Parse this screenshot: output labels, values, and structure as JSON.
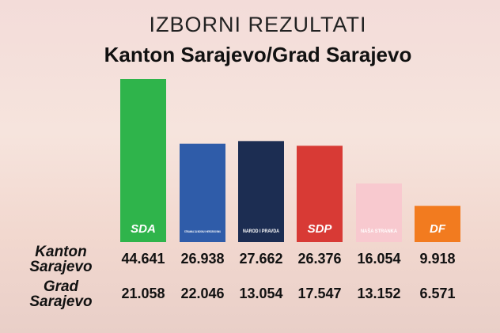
{
  "chart_data": {
    "type": "bar",
    "title": "IZBORNI REZULTATI",
    "subtitle": "Kanton Sarajevo/Grad Sarajevo",
    "categories": [
      "SDA",
      "STRANKA ZA BOSNU I HERCEGOVINU",
      "NAROD I PRAVDA",
      "SDP",
      "NAŠA STRANKA",
      "DF"
    ],
    "colors": [
      "#2fb44b",
      "#2f5ca9",
      "#1c2d52",
      "#d83a35",
      "#f8c9cf",
      "#f27b1f"
    ],
    "series": [
      {
        "name": "Kanton Sarajevo",
        "values": [
          44641,
          26938,
          27662,
          26376,
          16054,
          9918
        ],
        "value_labels": [
          "44.641",
          "26.938",
          "27.662",
          "26.376",
          "16.054",
          "9.918"
        ]
      },
      {
        "name": "Grad Sarajevo",
        "values": [
          21058,
          22046,
          13054,
          17547,
          13152,
          6571
        ],
        "value_labels": [
          "21.058",
          "22.046",
          "13.054",
          "17.547",
          "13.152",
          "6.571"
        ]
      }
    ]
  }
}
